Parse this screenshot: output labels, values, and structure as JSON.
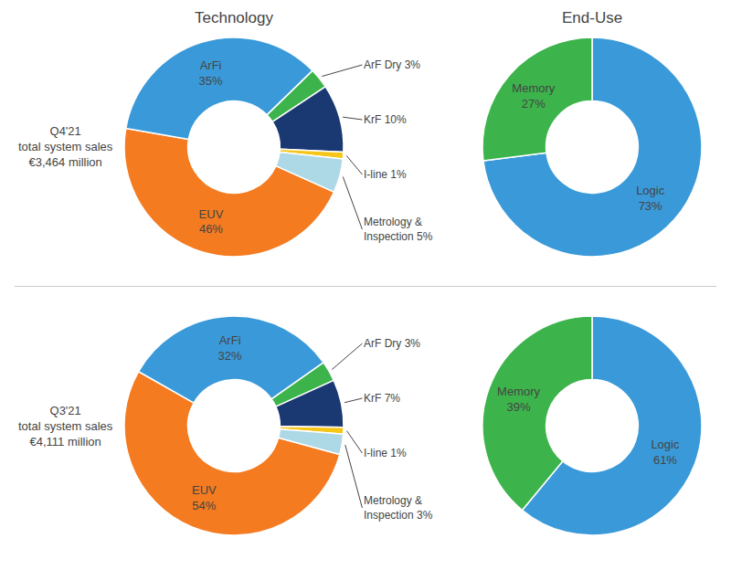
{
  "chart_data": [
    {
      "type": "pie",
      "title": "Technology",
      "subtitle": "Q4'21\ntotal system sales\n€3,464 million",
      "values": [
        46,
        35,
        3,
        10,
        1,
        5
      ],
      "value_labels": [
        "EUV\n46%",
        "ArFi\n35%",
        "ArF Dry 3%",
        "KrF 10%",
        "I-line 1%",
        "Metrology &\nInspection 5%"
      ],
      "colors": [
        "#f47b20",
        "#3a9ad9",
        "#3cb44b",
        "#1a3872",
        "#f5c518",
        "#add8e6"
      ],
      "data_labels": true
    },
    {
      "type": "pie",
      "title": "End-Use",
      "values": [
        73,
        27
      ],
      "value_labels": [
        "Logic\n73%",
        "Memory\n27%"
      ],
      "colors": [
        "#3a9ad9",
        "#3cb44b"
      ],
      "data_labels": true
    },
    {
      "type": "pie",
      "subtitle": "Q3'21\ntotal system sales\n€4,111 million",
      "values": [
        54,
        32,
        3,
        7,
        1,
        3
      ],
      "value_labels": [
        "EUV\n54%",
        "ArFi\n32%",
        "ArF Dry 3%",
        "KrF 7%",
        "I-line 1%",
        "Metrology &\nInspection 3%"
      ],
      "colors": [
        "#f47b20",
        "#3a9ad9",
        "#3cb44b",
        "#1a3872",
        "#f5c518",
        "#add8e6"
      ],
      "data_labels": true
    },
    {
      "type": "pie",
      "values": [
        61,
        39
      ],
      "value_labels": [
        "Logic\n61%",
        "Memory\n39%"
      ],
      "colors": [
        "#3a9ad9",
        "#3cb44b"
      ],
      "data_labels": true
    }
  ]
}
